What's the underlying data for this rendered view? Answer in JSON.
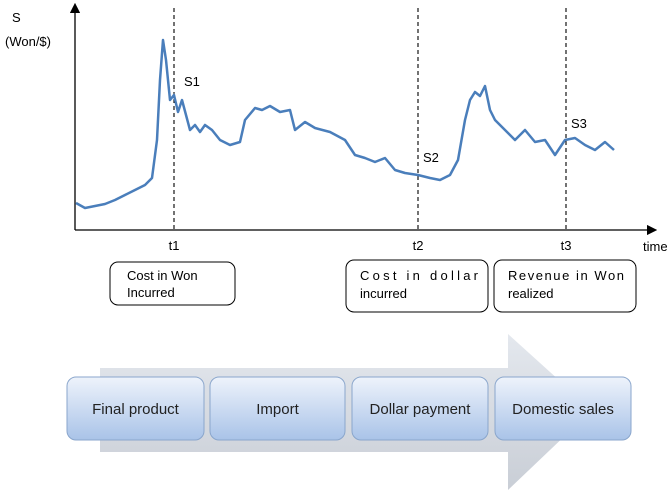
{
  "axis": {
    "y_label": "S",
    "y_unit": "(Won/$)",
    "x_label": "time"
  },
  "time_points": [
    {
      "label": "t1",
      "spot": "S1",
      "event": [
        "Cost in Won",
        "Incurred"
      ]
    },
    {
      "label": "t2",
      "spot": "S2",
      "event": [
        "Cost in dollar",
        "incurred"
      ]
    },
    {
      "label": "t3",
      "spot": "S3",
      "event": [
        "Revenue in Won",
        "realized"
      ]
    }
  ],
  "process": [
    "Final product",
    "Import",
    "Dollar payment",
    "Domestic sales"
  ]
}
